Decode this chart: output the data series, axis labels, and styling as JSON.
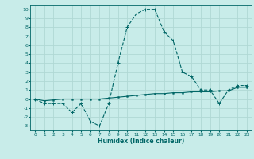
{
  "xlabel": "Humidex (Indice chaleur)",
  "background_color": "#c8ece9",
  "grid_color": "#b0d8d4",
  "line_color": "#006666",
  "xlim": [
    -0.5,
    23.5
  ],
  "ylim": [
    -3.5,
    10.5
  ],
  "yticks": [
    -3,
    -2,
    -1,
    0,
    1,
    2,
    3,
    4,
    5,
    6,
    7,
    8,
    9,
    10
  ],
  "xticks": [
    0,
    1,
    2,
    3,
    4,
    5,
    6,
    7,
    8,
    9,
    10,
    11,
    12,
    13,
    14,
    15,
    16,
    17,
    18,
    19,
    20,
    21,
    22,
    23
  ],
  "series1": [
    0,
    -0.5,
    -0.5,
    -0.5,
    -1.5,
    -0.5,
    -2.5,
    -3,
    -0.5,
    4,
    8,
    9.5,
    10,
    10,
    7.5,
    6.5,
    3,
    2.5,
    1,
    1,
    -0.5,
    1,
    1.5,
    1.5
  ],
  "series2": [
    0,
    -0.2,
    -0.1,
    0.0,
    0.0,
    0.0,
    0.0,
    0.0,
    0.1,
    0.2,
    0.3,
    0.4,
    0.5,
    0.6,
    0.6,
    0.7,
    0.7,
    0.8,
    0.8,
    0.8,
    0.9,
    0.9,
    1.3,
    1.3
  ]
}
